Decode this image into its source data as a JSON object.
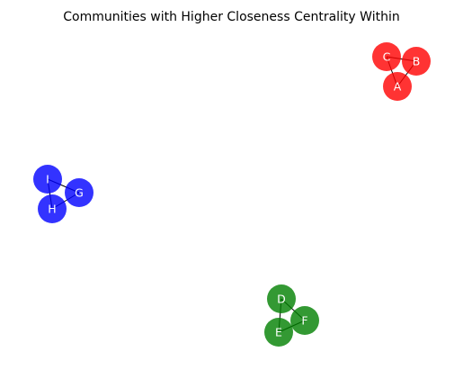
{
  "title": "Communities with Higher Closeness Centrality Within",
  "communities": [
    {
      "color": "#ff0000",
      "nodes": [
        "A",
        "B",
        "C"
      ],
      "edges": [
        [
          "C",
          "B"
        ],
        [
          "C",
          "A"
        ],
        [
          "B",
          "A"
        ]
      ]
    },
    {
      "color": "#0000ff",
      "nodes": [
        "G",
        "H",
        "I"
      ],
      "edges": [
        [
          "I",
          "G"
        ],
        [
          "I",
          "H"
        ],
        [
          "G",
          "H"
        ]
      ]
    },
    {
      "color": "#008000",
      "nodes": [
        "D",
        "E",
        "F"
      ],
      "edges": [
        [
          "D",
          "F"
        ],
        [
          "D",
          "E"
        ],
        [
          "F",
          "E"
        ]
      ]
    }
  ],
  "node_opacity": 0.8
}
